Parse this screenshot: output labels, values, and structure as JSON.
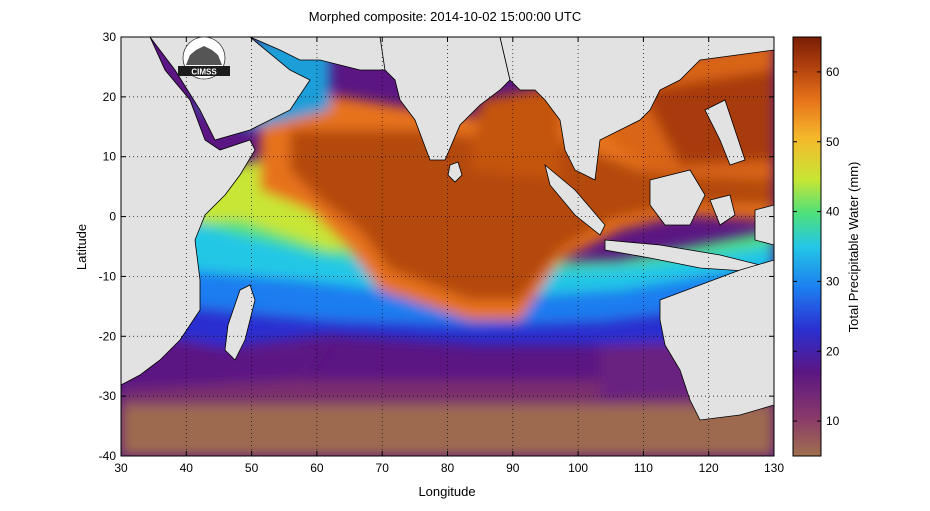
{
  "title": "Morphed composite: 2014-10-02 15:00:00 UTC",
  "xlabel": "Longitude",
  "ylabel": "Latitude",
  "colorbar_label": "Total Precipitable Water (mm)",
  "logo_text": "CIMSS",
  "x_ticks": [
    "30",
    "40",
    "50",
    "60",
    "70",
    "80",
    "90",
    "100",
    "110",
    "120",
    "130"
  ],
  "y_ticks": [
    "30",
    "20",
    "10",
    "0",
    "-10",
    "-20",
    "-30",
    "-40"
  ],
  "colorbar_ticks": [
    "60",
    "50",
    "40",
    "30",
    "20",
    "10"
  ],
  "colors": {
    "land": "#e2e2e2",
    "coast": "#000000",
    "moist": "#b4490e",
    "dry_purple": "#5a1a7a",
    "driest_brown": "#9e6a50"
  },
  "chart_data": {
    "type": "heatmap",
    "xlim": [
      30,
      130
    ],
    "ylim": [
      -40,
      30
    ],
    "clim": [
      5,
      65
    ],
    "grid": true,
    "colormap_stops": [
      "#a0704e",
      "#8a3a6a",
      "#5b1683",
      "#2a2fd0",
      "#1d7df0",
      "#24c7e6",
      "#4fe07a",
      "#c8e634",
      "#f5b82c",
      "#e7721a",
      "#a83a0c",
      "#7a1e05"
    ]
  }
}
